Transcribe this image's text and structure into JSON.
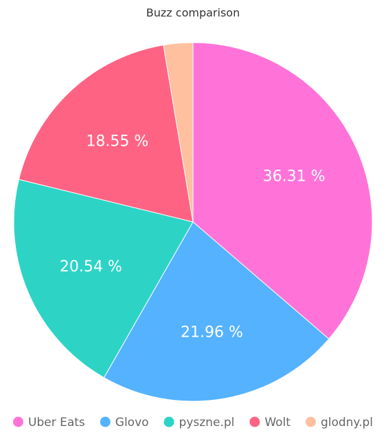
{
  "chart_data": {
    "type": "pie",
    "title": "Buzz comparison",
    "slices": [
      {
        "name": "Uber Eats",
        "value": 36.31,
        "label": "36.31 %",
        "color": "#ff73d9"
      },
      {
        "name": "Glovo",
        "value": 21.96,
        "label": "21.96 %",
        "color": "#55b2ff"
      },
      {
        "name": "pyszne.pl",
        "value": 20.54,
        "label": "20.54 %",
        "color": "#2dd4c6"
      },
      {
        "name": "Wolt",
        "value": 18.55,
        "label": "18.55 %",
        "color": "#ff6384"
      },
      {
        "name": "glodny.pl",
        "value": 2.64,
        "label": "",
        "color": "#ffc09f"
      }
    ],
    "legend_position": "bottom"
  }
}
